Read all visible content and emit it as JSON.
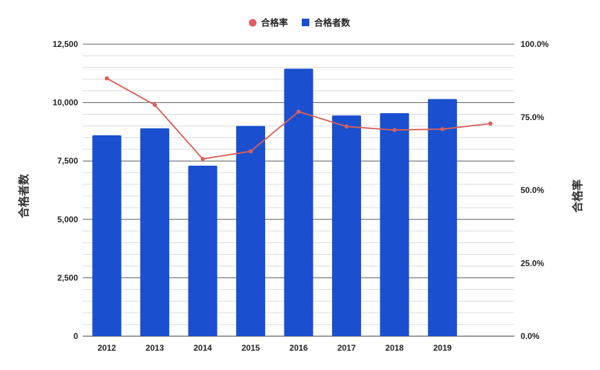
{
  "chart_data": {
    "type": "bar",
    "categories": [
      "2012",
      "2013",
      "2014",
      "2015",
      "2016",
      "2017",
      "2018",
      "2019",
      ""
    ],
    "series": [
      {
        "name": "合格者数",
        "type": "bar",
        "axis": "left",
        "color": "#1a4fcf",
        "values": [
          8600,
          8900,
          7300,
          9000,
          11450,
          9450,
          9550,
          10150,
          null
        ]
      },
      {
        "name": "合格率",
        "type": "line",
        "axis": "right",
        "color": "#d9605c",
        "values": [
          88.3,
          79.2,
          60.7,
          63.3,
          76.9,
          71.8,
          70.6,
          70.9,
          72.8
        ]
      }
    ],
    "left_axis": {
      "title": "合格者数",
      "ylim": [
        0,
        12500
      ],
      "ticks": [
        0,
        2500,
        5000,
        7500,
        10000,
        12500
      ],
      "tick_labels": [
        "0",
        "2,500",
        "5,000",
        "7,500",
        "10,000",
        "12,500"
      ]
    },
    "right_axis": {
      "title": "合格率",
      "ylim": [
        0,
        100
      ],
      "ticks": [
        0,
        25,
        50,
        75,
        100
      ],
      "tick_labels": [
        "0.0%",
        "25.0%",
        "50.0%",
        "75.0%",
        "100.0%"
      ]
    },
    "legend": {
      "position": "top",
      "items": [
        "合格率",
        "合格者数"
      ]
    },
    "grid": true
  }
}
